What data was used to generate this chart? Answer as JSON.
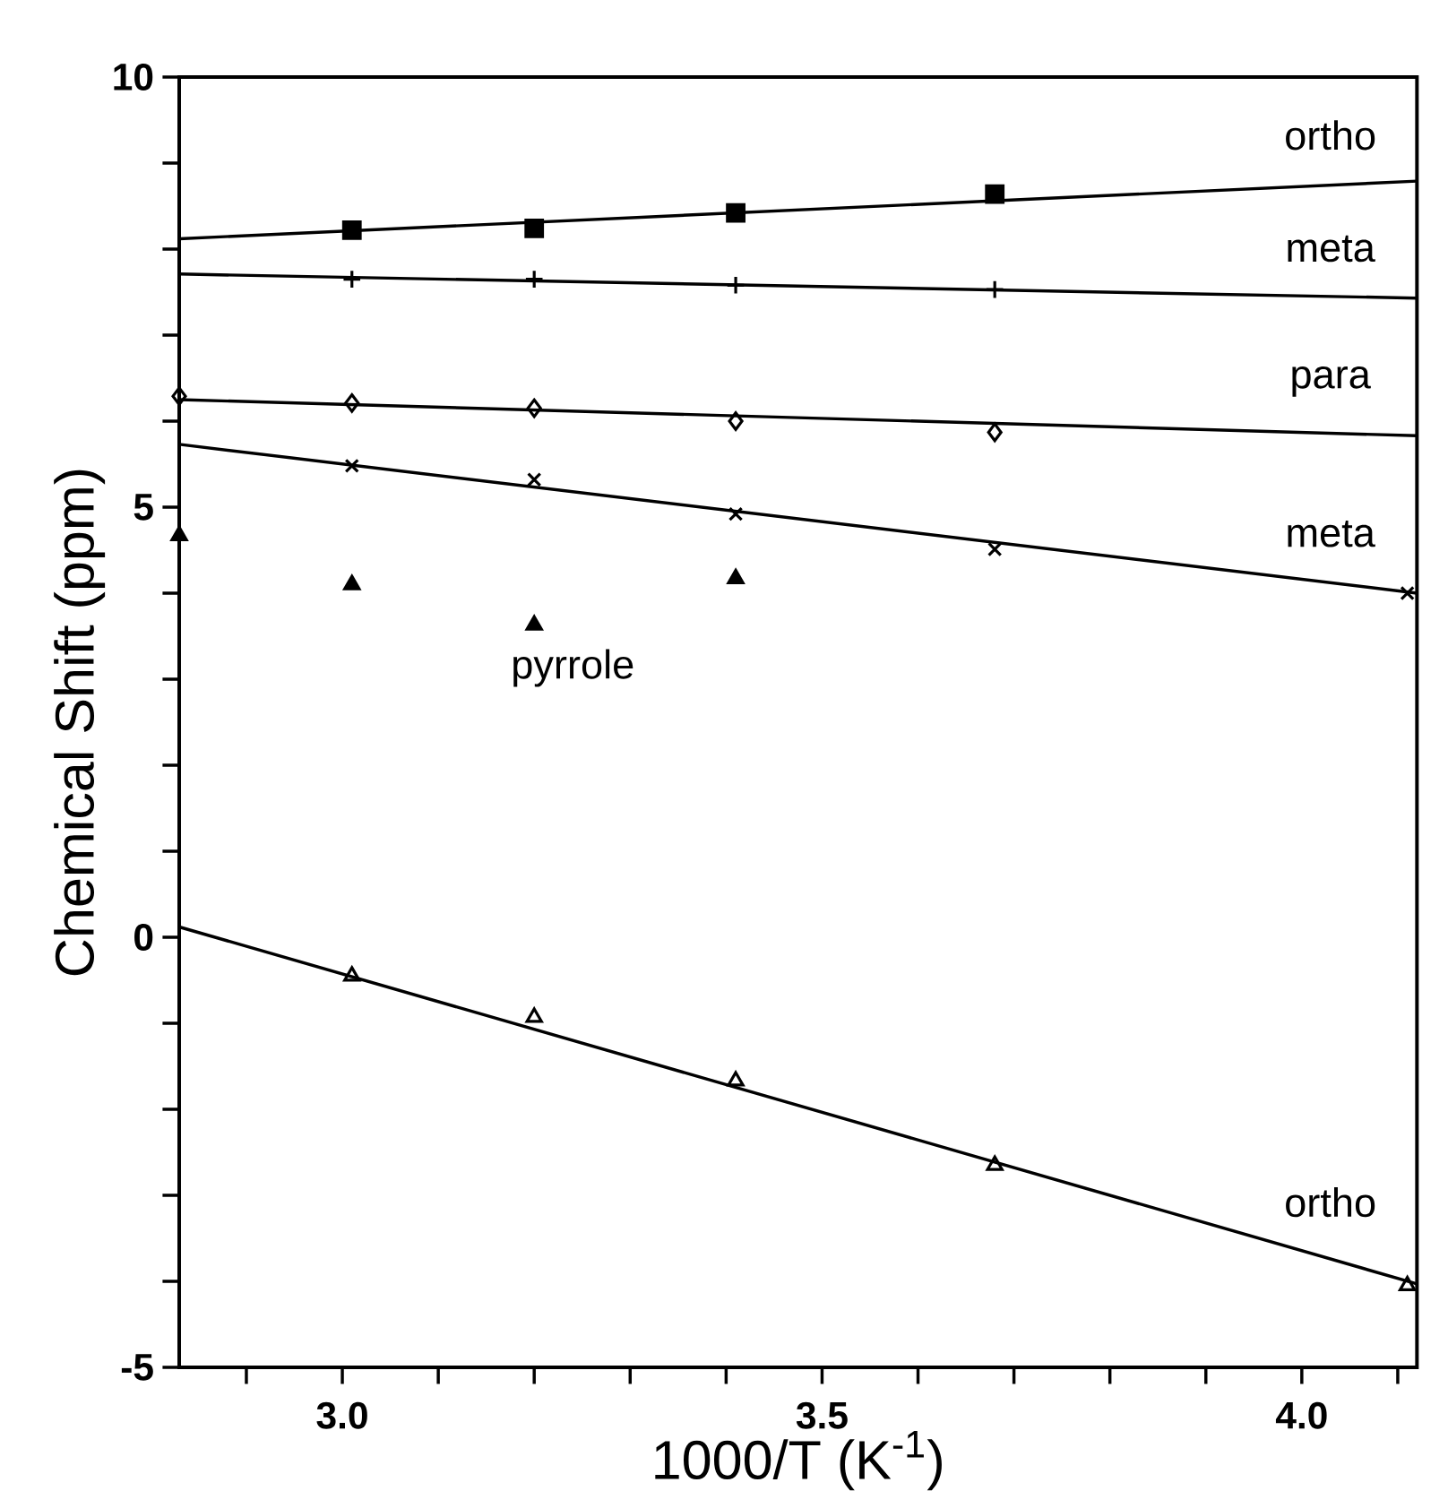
{
  "chart_data": {
    "type": "scatter",
    "xlabel": "1000/T (K$^{-1}$)",
    "ylabel": "Chemical Shift (ppm)",
    "xlim": [
      2.83,
      4.12
    ],
    "ylim": [
      -5,
      10
    ],
    "xticks": [
      {
        "value": 2.9,
        "label": null
      },
      {
        "value": 3.0,
        "label": "3.0"
      },
      {
        "value": 3.1,
        "label": null
      },
      {
        "value": 3.2,
        "label": null
      },
      {
        "value": 3.3,
        "label": null
      },
      {
        "value": 3.4,
        "label": null
      },
      {
        "value": 3.5,
        "label": "3.5"
      },
      {
        "value": 3.6,
        "label": null
      },
      {
        "value": 3.7,
        "label": null
      },
      {
        "value": 3.8,
        "label": null
      },
      {
        "value": 3.9,
        "label": null
      },
      {
        "value": 4.0,
        "label": "4.0"
      },
      {
        "value": 4.1,
        "label": null
      }
    ],
    "yticks": [
      {
        "value": -5,
        "label": "-5"
      },
      {
        "value": -4,
        "label": null
      },
      {
        "value": -3,
        "label": null
      },
      {
        "value": -2,
        "label": null
      },
      {
        "value": -1,
        "label": null
      },
      {
        "value": 0,
        "label": "0"
      },
      {
        "value": 1,
        "label": null
      },
      {
        "value": 2,
        "label": null
      },
      {
        "value": 3,
        "label": null
      },
      {
        "value": 4,
        "label": null
      },
      {
        "value": 5,
        "label": "5"
      },
      {
        "value": 6,
        "label": null
      },
      {
        "value": 7,
        "label": null
      },
      {
        "value": 8,
        "label": null
      },
      {
        "value": 9,
        "label": null
      },
      {
        "value": 10,
        "label": "10"
      }
    ],
    "grid": false,
    "series": [
      {
        "marker": "square",
        "color": "#000000",
        "x": [
          3.01,
          3.2,
          3.41,
          3.68
        ],
        "values": [
          8.22,
          8.24,
          8.42,
          8.64
        ]
      },
      {
        "name": "ortho",
        "type": "line",
        "marker": "none",
        "line_style": "solid",
        "color": "#000000",
        "x": [
          2.83,
          4.12
        ],
        "values": [
          8.12,
          8.79
        ]
      },
      {
        "marker": "plus",
        "color": "#000000",
        "x": [
          3.01,
          3.2,
          3.41,
          3.68
        ],
        "values": [
          7.65,
          7.65,
          7.58,
          7.53
        ]
      },
      {
        "name": "meta",
        "type": "line",
        "marker": "none",
        "line_style": "solid",
        "color": "#000000",
        "x": [
          2.83,
          4.12
        ],
        "values": [
          7.71,
          7.43
        ]
      },
      {
        "marker": "diamond",
        "color": "#000000",
        "x": [
          2.83,
          3.01,
          3.2,
          3.41,
          3.68
        ],
        "values": [
          6.29,
          6.21,
          6.15,
          6.0,
          5.87
        ]
      },
      {
        "name": "para",
        "type": "line",
        "marker": "none",
        "line_style": "solid",
        "color": "#000000",
        "x": [
          2.83,
          4.12
        ],
        "values": [
          6.25,
          5.83
        ]
      },
      {
        "marker": "cross",
        "color": "#000000",
        "x": [
          3.01,
          3.2,
          3.41,
          3.68,
          4.11
        ],
        "values": [
          5.48,
          5.32,
          4.92,
          4.51,
          4.0
        ]
      },
      {
        "name": "meta",
        "type": "line",
        "marker": "none",
        "line_style": "solid",
        "color": "#000000",
        "x": [
          2.83,
          4.12
        ],
        "values": [
          5.73,
          4.0
        ]
      },
      {
        "name": "pyrrole",
        "marker": "triangle",
        "color": "#000000",
        "x": [
          2.83,
          3.01,
          3.2,
          3.41
        ],
        "values": [
          4.67,
          4.1,
          3.63,
          4.17
        ]
      },
      {
        "marker": "triangle-down",
        "color": "#000000",
        "x": [
          3.01,
          3.2,
          3.41,
          3.68,
          4.11
        ],
        "values": [
          -0.45,
          -0.93,
          -1.67,
          -2.65,
          -4.05
        ]
      },
      {
        "name": "ortho",
        "type": "line",
        "marker": "none",
        "line_style": "solid",
        "color": "#000000",
        "x": [
          2.83,
          4.12
        ],
        "values": [
          0.12,
          -4.03
        ]
      }
    ]
  }
}
